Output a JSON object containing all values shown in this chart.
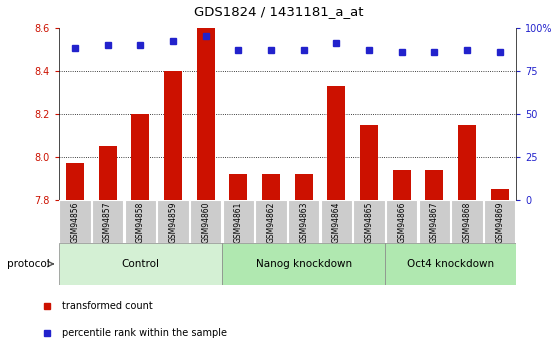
{
  "title": "GDS1824 / 1431181_a_at",
  "samples": [
    "GSM94856",
    "GSM94857",
    "GSM94858",
    "GSM94859",
    "GSM94860",
    "GSM94861",
    "GSM94862",
    "GSM94863",
    "GSM94864",
    "GSM94865",
    "GSM94866",
    "GSM94867",
    "GSM94868",
    "GSM94869"
  ],
  "red_values": [
    7.97,
    8.05,
    8.2,
    8.4,
    8.6,
    7.92,
    7.92,
    7.92,
    8.33,
    8.15,
    7.94,
    7.94,
    8.15,
    7.85
  ],
  "blue_values": [
    88,
    90,
    90,
    92,
    95,
    87,
    87,
    87,
    91,
    87,
    86,
    86,
    87,
    86
  ],
  "ylim_left": [
    7.8,
    8.6
  ],
  "ylim_right": [
    0,
    100
  ],
  "yticks_left": [
    7.8,
    8.0,
    8.2,
    8.4,
    8.6
  ],
  "yticks_right": [
    0,
    25,
    50,
    75,
    100
  ],
  "ytick_labels_right": [
    "0",
    "25",
    "50",
    "75",
    "100%"
  ],
  "groups": [
    {
      "label": "Control",
      "start": 0,
      "end": 5
    },
    {
      "label": "Nanog knockdown",
      "start": 5,
      "end": 10
    },
    {
      "label": "Oct4 knockdown",
      "start": 10,
      "end": 14
    }
  ],
  "group_colors": [
    "#d4f0d4",
    "#b0e8b0",
    "#b0e8b0"
  ],
  "protocol_label": "protocol",
  "bar_color": "#cc1100",
  "dot_color": "#2222cc",
  "bar_bottom": 7.8,
  "tick_bg_color": "#cccccc",
  "legend_items": [
    {
      "color": "#cc1100",
      "label": "transformed count"
    },
    {
      "color": "#2222cc",
      "label": "percentile rank within the sample"
    }
  ]
}
